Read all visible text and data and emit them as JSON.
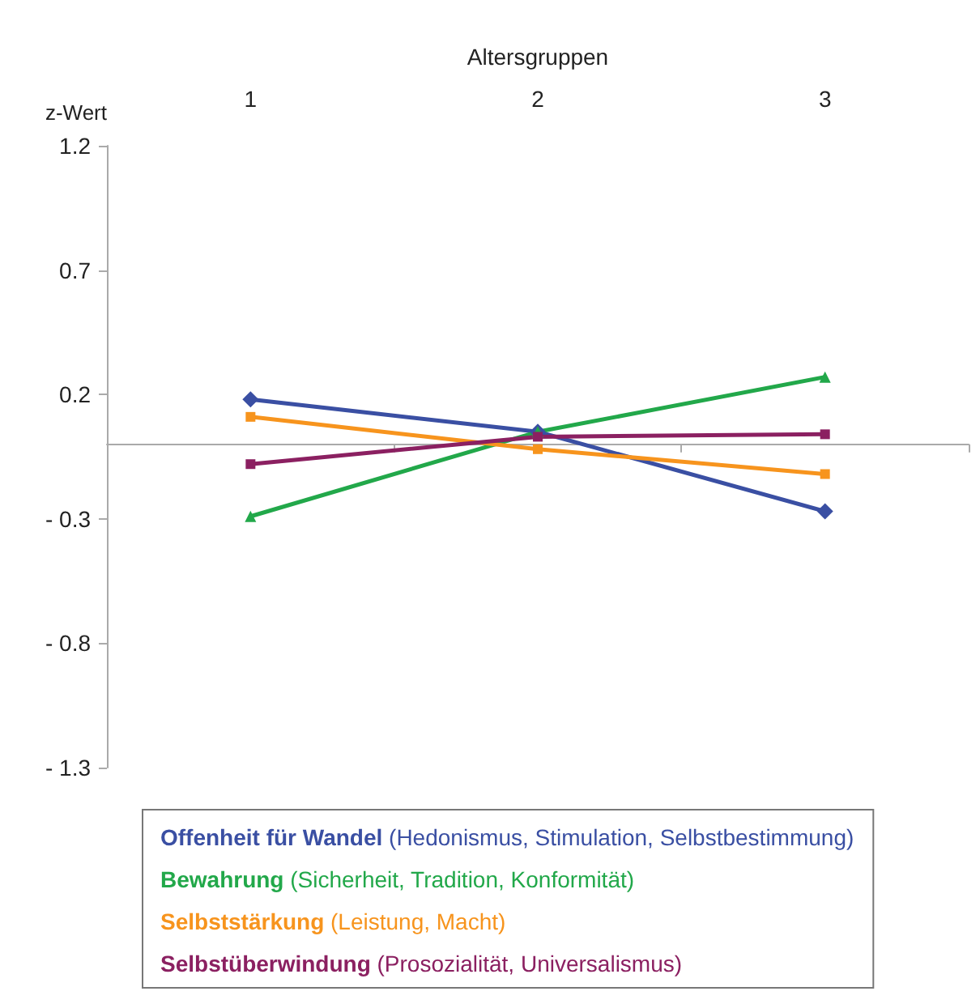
{
  "chart_data": {
    "type": "line",
    "xlabel": "Altersgruppen",
    "ylabel": "z-Wert",
    "categories": [
      "1",
      "2",
      "3"
    ],
    "ylim": [
      -1.3,
      1.2
    ],
    "yticks": [
      {
        "value": -1.3,
        "label": "- 1.3"
      },
      {
        "value": -0.8,
        "label": "- 0.8"
      },
      {
        "value": -0.3,
        "label": "- 0.3"
      },
      0.2,
      0.7,
      1.2
    ],
    "grid": false,
    "legend": "bottom",
    "series": [
      {
        "name": "Offenheit für Wandel (Hedonismus, Stimulation, Selbstbestimmung)",
        "color": "#3a4fa3",
        "marker": "diamond",
        "values": [
          0.18,
          0.05,
          -0.27
        ]
      },
      {
        "name": "Bewahrung (Sicherheit, Tradition, Konformität)",
        "color": "#22a84a",
        "marker": "triangle",
        "values": [
          -0.29,
          0.05,
          0.27
        ]
      },
      {
        "name": "Selbststärkung (Leistung, Macht)",
        "color": "#f7941d",
        "marker": "square",
        "values": [
          0.11,
          -0.02,
          -0.12
        ]
      },
      {
        "name": "Selbstüberwindung (Prosozialität, Universalismus)",
        "color": "#8b2061",
        "marker": "square",
        "values": [
          -0.08,
          0.03,
          0.04
        ]
      }
    ]
  }
}
